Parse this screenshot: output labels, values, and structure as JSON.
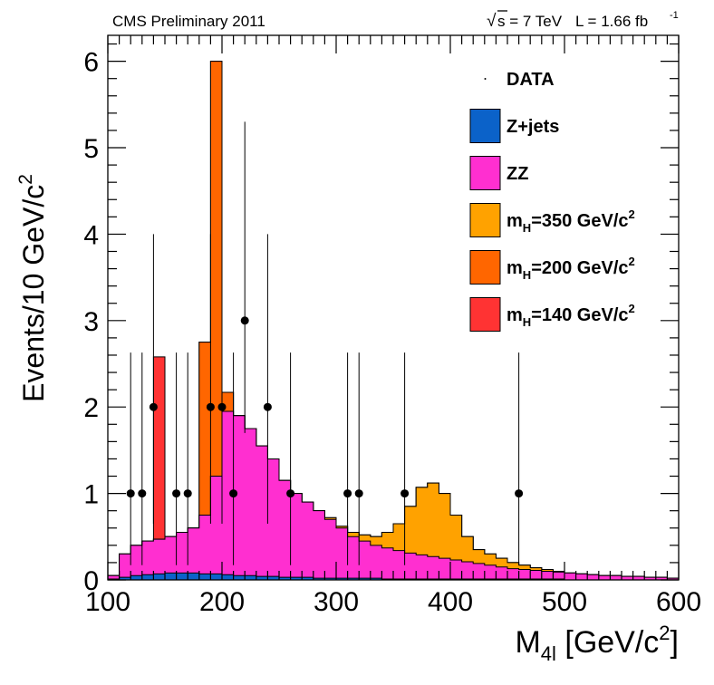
{
  "header": {
    "left": "CMS Preliminary 2011",
    "sqrt_symbol": "√",
    "energy": "s = 7 TeV",
    "lumi": "L = 1.66 fb",
    "lumi_sup": "-1"
  },
  "chart_data": {
    "type": "histogram-stacked",
    "xlabel": {
      "main": "M",
      "sub": "4l",
      "rest": " [GeV/c",
      "sup": "2",
      "end": "]"
    },
    "ylabel": {
      "main": "Events/10 GeV/c",
      "sup": "2"
    },
    "xlim": [
      100,
      600
    ],
    "ylim": [
      0,
      6.3
    ],
    "xticks": [
      100,
      200,
      300,
      400,
      500,
      600
    ],
    "yticks": [
      0,
      1,
      2,
      3,
      4,
      5,
      6
    ],
    "bin_width": 10,
    "bin_edges_start": 100,
    "stack_order_bottom_to_top": [
      "zjets",
      "zz",
      "mH350",
      "mH200",
      "mH140"
    ],
    "cumulative_tops": {
      "zjets": [
        0.01,
        0.03,
        0.05,
        0.06,
        0.07,
        0.08,
        0.08,
        0.08,
        0.07,
        0.07,
        0.06,
        0.05,
        0.05,
        0.04,
        0.04,
        0.03,
        0.03,
        0.03,
        0.02,
        0.02,
        0.02,
        0.02,
        0.02,
        0.02,
        0.01,
        0.01,
        0.01,
        0.01,
        0.01,
        0.01,
        0.01,
        0.01,
        0.01,
        0.01,
        0.01,
        0.01,
        0.01,
        0.01,
        0.01,
        0.01,
        0.0,
        0.0,
        0.0,
        0.0,
        0.0,
        0.0,
        0.0,
        0.0,
        0.0,
        0.0
      ],
      "zz": [
        0.05,
        0.3,
        0.4,
        0.45,
        0.47,
        0.5,
        0.55,
        0.6,
        0.75,
        1.2,
        1.95,
        1.9,
        1.75,
        1.55,
        1.4,
        1.15,
        1.0,
        0.9,
        0.8,
        0.7,
        0.6,
        0.5,
        0.45,
        0.4,
        0.37,
        0.34,
        0.31,
        0.29,
        0.27,
        0.25,
        0.23,
        0.21,
        0.19,
        0.17,
        0.15,
        0.13,
        0.12,
        0.11,
        0.1,
        0.09,
        0.08,
        0.07,
        0.06,
        0.05,
        0.05,
        0.04,
        0.04,
        0.03,
        0.03,
        0.02
      ],
      "mH350": [
        0.05,
        0.3,
        0.4,
        0.45,
        0.47,
        0.5,
        0.55,
        0.6,
        0.75,
        1.2,
        1.95,
        1.9,
        1.75,
        1.55,
        1.4,
        1.15,
        1.0,
        0.9,
        0.8,
        0.72,
        0.62,
        0.55,
        0.52,
        0.5,
        0.55,
        0.65,
        0.85,
        1.07,
        1.12,
        1.0,
        0.75,
        0.5,
        0.35,
        0.3,
        0.25,
        0.2,
        0.17,
        0.14,
        0.12,
        0.1,
        0.08,
        0.07,
        0.06,
        0.05,
        0.05,
        0.04,
        0.04,
        0.03,
        0.03,
        0.02
      ],
      "mH200": [
        0.05,
        0.3,
        0.4,
        0.45,
        0.47,
        0.5,
        0.55,
        0.6,
        2.75,
        6.0,
        2.17,
        1.9,
        1.75,
        1.55,
        1.4,
        1.15,
        1.0,
        0.9,
        0.8,
        0.72,
        0.62,
        0.55,
        0.52,
        0.5,
        0.55,
        0.65,
        0.85,
        1.07,
        1.12,
        1.0,
        0.75,
        0.5,
        0.35,
        0.3,
        0.25,
        0.2,
        0.17,
        0.14,
        0.12,
        0.1,
        0.08,
        0.07,
        0.06,
        0.05,
        0.05,
        0.04,
        0.04,
        0.03,
        0.03,
        0.02
      ],
      "mH140": [
        0.05,
        0.3,
        0.4,
        0.45,
        2.58,
        0.5,
        0.55,
        0.6,
        2.75,
        6.0,
        2.17,
        1.9,
        1.75,
        1.55,
        1.4,
        1.15,
        1.0,
        0.9,
        0.8,
        0.72,
        0.62,
        0.55,
        0.52,
        0.5,
        0.55,
        0.65,
        0.85,
        1.07,
        1.12,
        1.0,
        0.75,
        0.5,
        0.35,
        0.3,
        0.25,
        0.2,
        0.17,
        0.14,
        0.12,
        0.1,
        0.08,
        0.07,
        0.06,
        0.05,
        0.05,
        0.04,
        0.04,
        0.03,
        0.03,
        0.02
      ]
    },
    "data_points": [
      {
        "x": 120,
        "y": 1,
        "err_low": 0.83,
        "err_high": 1.63
      },
      {
        "x": 130,
        "y": 1,
        "err_low": 0.83,
        "err_high": 1.63
      },
      {
        "x": 140,
        "y": 2,
        "err_low": 1.35,
        "err_high": 2.0
      },
      {
        "x": 160,
        "y": 1,
        "err_low": 0.83,
        "err_high": 1.63
      },
      {
        "x": 170,
        "y": 1,
        "err_low": 0.83,
        "err_high": 1.63
      },
      {
        "x": 190,
        "y": 2,
        "err_low": 1.35,
        "err_high": 2.0
      },
      {
        "x": 200,
        "y": 2,
        "err_low": 1.35,
        "err_high": 2.0
      },
      {
        "x": 210,
        "y": 1,
        "err_low": 0.83,
        "err_high": 1.63
      },
      {
        "x": 220,
        "y": 3,
        "err_low": 1.3,
        "err_high": 2.3
      },
      {
        "x": 240,
        "y": 2,
        "err_low": 1.35,
        "err_high": 2.0
      },
      {
        "x": 260,
        "y": 1,
        "err_low": 0.83,
        "err_high": 1.63
      },
      {
        "x": 310,
        "y": 1,
        "err_low": 0.83,
        "err_high": 1.63
      },
      {
        "x": 320,
        "y": 1,
        "err_low": 0.83,
        "err_high": 1.63
      },
      {
        "x": 360,
        "y": 1,
        "err_low": 0.83,
        "err_high": 1.63
      },
      {
        "x": 460,
        "y": 1,
        "err_low": 0.83,
        "err_high": 1.63
      }
    ],
    "colors": {
      "zjets": "#0b62c9",
      "zz": "#ff2fd0",
      "mH350": "#ffa200",
      "mH200": "#ff6600",
      "mH140": "#ff3333",
      "data": "#000000"
    },
    "legend": {
      "placement": "top-right",
      "entries": [
        {
          "key": "data",
          "label": "DATA"
        },
        {
          "key": "zjets",
          "label": "Z+jets"
        },
        {
          "key": "zz",
          "label": "ZZ"
        },
        {
          "key": "mH350",
          "label_main": "m",
          "label_sub": "H",
          "label_rest": "=350 GeV/c",
          "label_sup": "2"
        },
        {
          "key": "mH200",
          "label_main": "m",
          "label_sub": "H",
          "label_rest": "=200 GeV/c",
          "label_sup": "2"
        },
        {
          "key": "mH140",
          "label_main": "m",
          "label_sub": "H",
          "label_rest": "=140 GeV/c",
          "label_sup": "2"
        }
      ]
    }
  }
}
